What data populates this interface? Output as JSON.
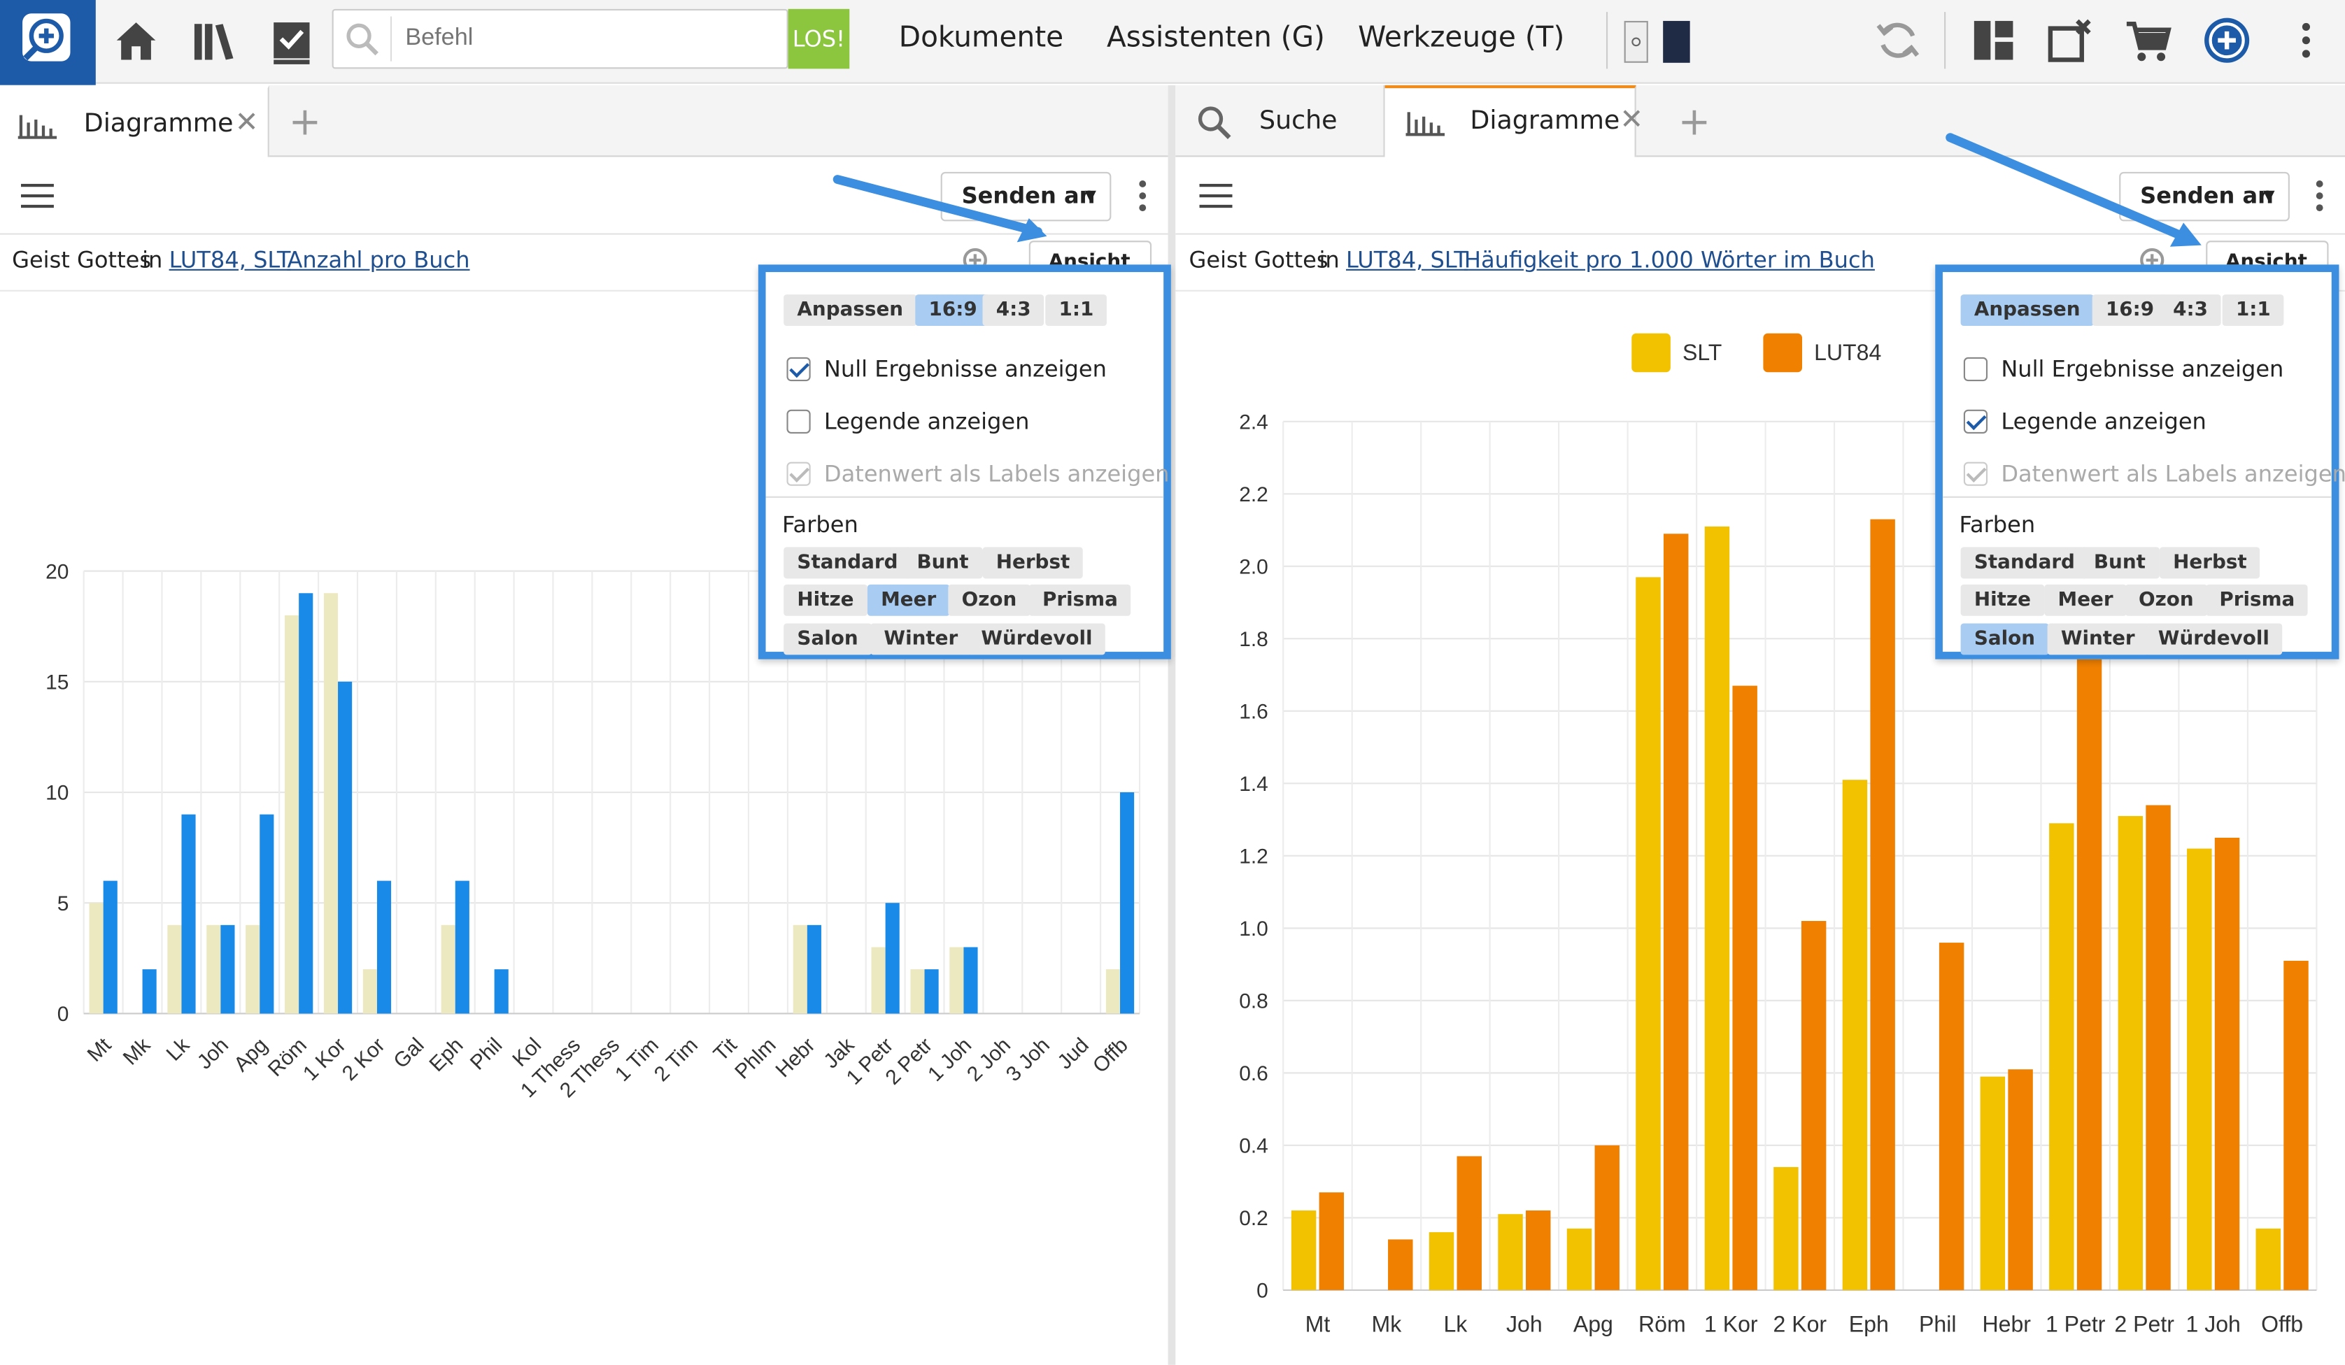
{
  "topbar": {
    "command_placeholder": "Befehl",
    "go_label": "LOS!",
    "menu": [
      "Dokumente",
      "Assistenten (G)",
      "Werkzeuge (T)"
    ],
    "icons": [
      "home-icon",
      "library-icon",
      "checklist-icon",
      "search-icon",
      "sync-icon",
      "layout-icon",
      "close-tab-icon",
      "cart-icon",
      "add-circle-icon",
      "more-vertical-icon"
    ]
  },
  "left": {
    "tab_label": "Diagramme",
    "send_label": "Senden an",
    "info_prefix": "Geist Gottes",
    "info_in": "in",
    "info_link1": "LUT84, SLT",
    "info_link2": "Anzahl pro Buch",
    "view_label": "Ansicht",
    "popup": {
      "sizes": [
        "Anpassen",
        "16:9",
        "4:3",
        "1:1"
      ],
      "size_selected": "16:9",
      "options": [
        {
          "label": "Null Ergebnisse anzeigen",
          "checked": true,
          "disabled": false
        },
        {
          "label": "Legende anzeigen",
          "checked": false,
          "disabled": false
        },
        {
          "label": "Datenwert als Labels anzeigen",
          "checked": true,
          "disabled": true
        }
      ],
      "colors_title": "Farben",
      "colors": [
        "Standard",
        "Bunt",
        "Herbst",
        "Hitze",
        "Meer",
        "Ozon",
        "Prisma",
        "Salon",
        "Winter",
        "Würdevoll"
      ],
      "color_selected": "Meer"
    }
  },
  "right": {
    "tab_search": "Suche",
    "tab_label": "Diagramme",
    "send_label": "Senden an",
    "info_prefix": "Geist Gottes",
    "info_in": "in",
    "info_link1": "LUT84, SLT",
    "info_link2": "Häufigkeit pro 1.000 Wörter im Buch",
    "view_label": "Ansicht",
    "popup": {
      "sizes": [
        "Anpassen",
        "16:9",
        "4:3",
        "1:1"
      ],
      "size_selected": "Anpassen",
      "options": [
        {
          "label": "Null Ergebnisse anzeigen",
          "checked": false,
          "disabled": false
        },
        {
          "label": "Legende anzeigen",
          "checked": true,
          "disabled": false
        },
        {
          "label": "Datenwert als Labels anzeigen",
          "checked": true,
          "disabled": true
        }
      ],
      "colors_title": "Farben",
      "colors": [
        "Standard",
        "Bunt",
        "Herbst",
        "Hitze",
        "Meer",
        "Ozon",
        "Prisma",
        "Salon",
        "Winter",
        "Würdevoll"
      ],
      "color_selected": "Salon"
    }
  },
  "chart_data": [
    {
      "type": "bar",
      "categories": [
        "Mt",
        "Mk",
        "Lk",
        "Joh",
        "Apg",
        "Röm",
        "1 Kor",
        "2 Kor",
        "Gal",
        "Eph",
        "Phil",
        "Kol",
        "1 Thess",
        "2 Thess",
        "1 Tim",
        "2 Tim",
        "Tit",
        "Phlm",
        "Hebr",
        "Jak",
        "1 Petr",
        "2 Petr",
        "1 Joh",
        "2 Joh",
        "3 Joh",
        "Jud",
        "Offb"
      ],
      "series": [
        {
          "values": [
            5,
            0,
            4,
            4,
            4,
            18,
            19,
            2,
            0,
            4,
            0,
            0,
            0,
            0,
            0,
            0,
            0,
            0,
            4,
            0,
            3,
            2,
            3,
            0,
            0,
            0,
            2
          ],
          "color": "#ece8c0"
        },
        {
          "values": [
            6,
            2,
            9,
            4,
            9,
            19,
            15,
            6,
            0,
            6,
            2,
            0,
            0,
            0,
            0,
            0,
            0,
            0,
            4,
            0,
            5,
            2,
            3,
            0,
            0,
            0,
            10
          ],
          "color": "#1a8ae8"
        }
      ],
      "ylim": [
        0,
        20
      ],
      "yticks": [
        0,
        5,
        10,
        15,
        20
      ],
      "grid": true
    },
    {
      "type": "bar",
      "categories": [
        "Mt",
        "Mk",
        "Lk",
        "Joh",
        "Apg",
        "Röm",
        "1 Kor",
        "2 Kor",
        "Eph",
        "Phil",
        "Hebr",
        "1 Petr",
        "2 Petr",
        "1 Joh",
        "Offb"
      ],
      "series": [
        {
          "name": "SLT",
          "values": [
            0.22,
            0,
            0.16,
            0.21,
            0.17,
            1.97,
            2.11,
            0.34,
            1.41,
            0,
            0.59,
            1.29,
            1.31,
            1.22,
            0.17
          ],
          "color": "#f2c200"
        },
        {
          "name": "LUT84",
          "values": [
            0.27,
            0.14,
            0.37,
            0.22,
            0.4,
            2.09,
            1.67,
            1.02,
            2.13,
            0.96,
            0.61,
            1.76,
            1.34,
            1.25,
            0.91
          ],
          "color": "#f08000"
        }
      ],
      "ylim": [
        0,
        2.4
      ],
      "yticks": [
        0,
        0.2,
        0.4,
        0.6,
        0.8,
        1.0,
        1.2,
        1.4,
        1.6,
        1.8,
        2.0,
        2.2,
        2.4
      ],
      "legend": "top",
      "grid": true
    }
  ]
}
